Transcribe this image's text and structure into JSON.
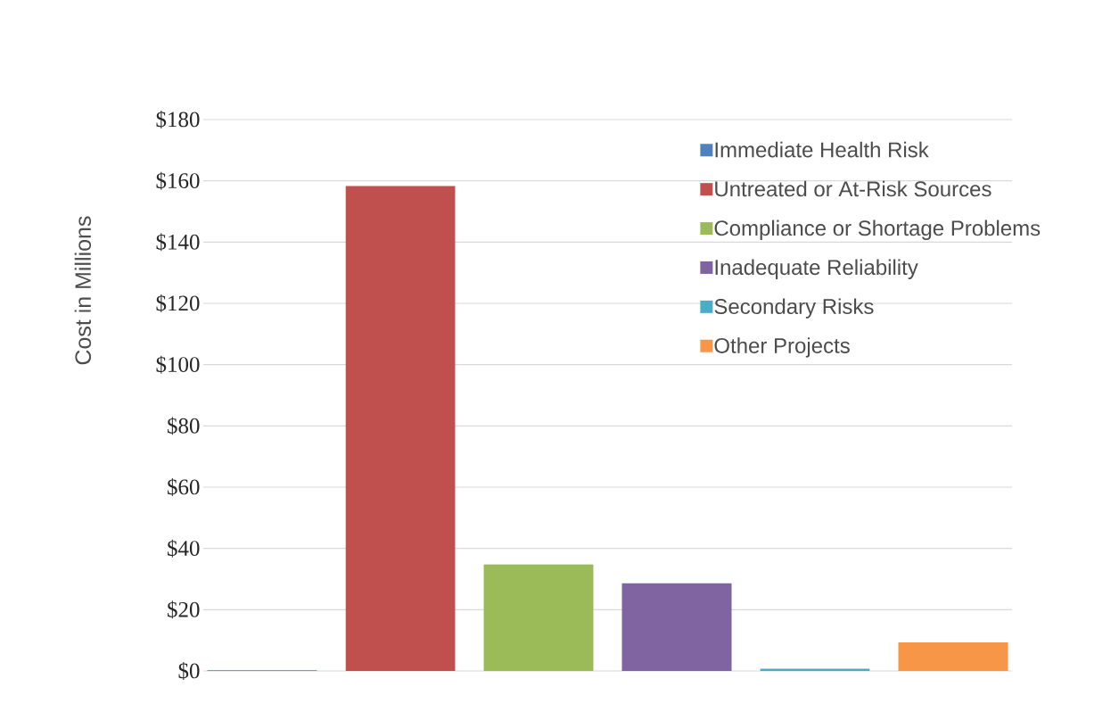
{
  "chart_data": {
    "type": "bar",
    "ylabel": "Cost in Millions",
    "categories": [
      null
    ],
    "series": [
      {
        "name": "Immediate Health Risk",
        "color": "#4f81bd",
        "values": [
          0.2
        ]
      },
      {
        "name": "Untreated or At-Risk Sources",
        "color": "#c0504d",
        "values": [
          158.3
        ]
      },
      {
        "name": "Compliance or Shortage Problems",
        "color": "#9bbb59",
        "values": [
          34.8
        ]
      },
      {
        "name": "Inadequate Reliability",
        "color": "#8064a2",
        "values": [
          28.7
        ]
      },
      {
        "name": "Secondary Risks",
        "color": "#4bacc6",
        "values": [
          0.7
        ]
      },
      {
        "name": "Other Projects",
        "color": "#f79646",
        "values": [
          9.3
        ]
      }
    ],
    "ylim": [
      0,
      180
    ],
    "yticks": [
      {
        "value": 0,
        "label": "$0"
      },
      {
        "value": 20,
        "label": "$20"
      },
      {
        "value": 40,
        "label": "$40"
      },
      {
        "value": 60,
        "label": "$60"
      },
      {
        "value": 80,
        "label": "$80"
      },
      {
        "value": 100,
        "label": "$100"
      },
      {
        "value": 120,
        "label": "$120"
      },
      {
        "value": 140,
        "label": "$140"
      },
      {
        "value": 160,
        "label": "$160"
      },
      {
        "value": 180,
        "label": "$180"
      }
    ],
    "grid": "y",
    "legend": "top right",
    "tick_labels": "y"
  }
}
